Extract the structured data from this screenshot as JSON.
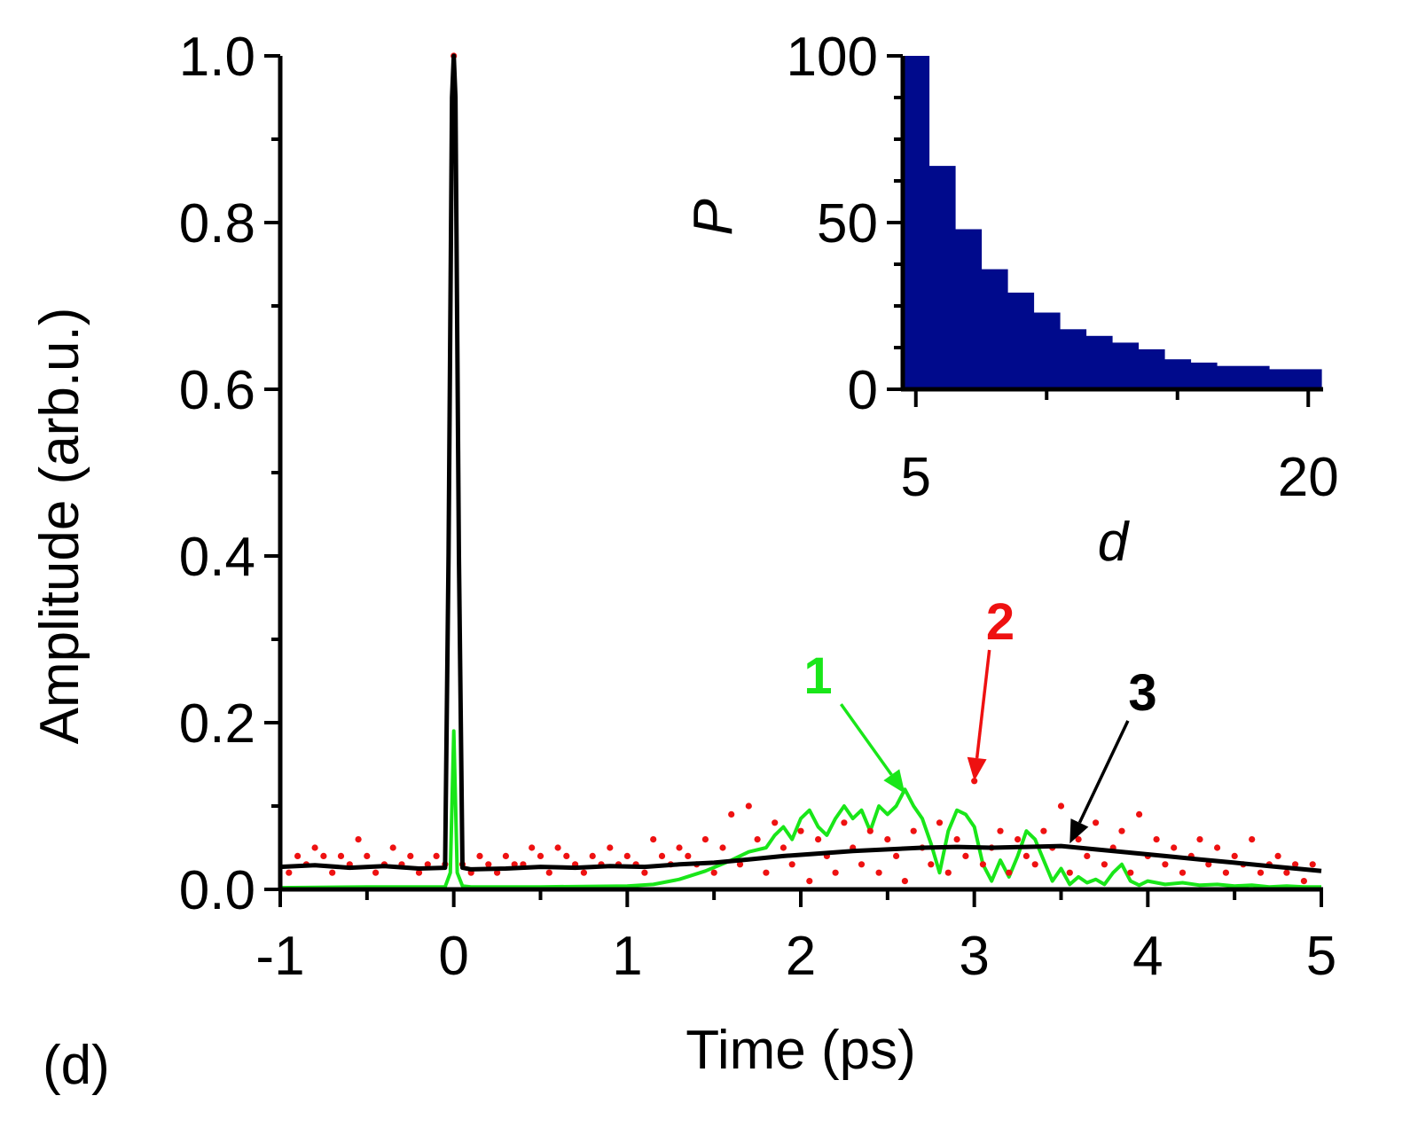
{
  "panel_label": "(d)",
  "colors": {
    "curve1": "#19e619",
    "curve2": "#ee1111",
    "curve3": "#000000",
    "inset_bars": "#000a8c"
  },
  "chart_data": [
    {
      "id": "main",
      "type": "line",
      "xlabel": "Time (ps)",
      "ylabel": "Amplitude (arb.u.)",
      "xlim": [
        -1,
        5
      ],
      "ylim": [
        0,
        1.0
      ],
      "xticks": [
        "-1",
        "0",
        "1",
        "2",
        "3",
        "4",
        "5"
      ],
      "yticks": [
        "0.0",
        "0.2",
        "0.4",
        "0.6",
        "0.8",
        "1.0"
      ],
      "series": [
        {
          "name": "1",
          "style": "solid line",
          "color": "#19e619",
          "x": [
            -1.0,
            -0.5,
            -0.05,
            -0.02,
            0.0,
            0.02,
            0.05,
            0.1,
            0.5,
            1.0,
            1.15,
            1.3,
            1.45,
            1.6,
            1.7,
            1.8,
            1.85,
            1.9,
            1.95,
            2.0,
            2.05,
            2.1,
            2.15,
            2.2,
            2.25,
            2.3,
            2.35,
            2.4,
            2.45,
            2.5,
            2.55,
            2.6,
            2.65,
            2.7,
            2.75,
            2.8,
            2.85,
            2.9,
            2.95,
            3.0,
            3.05,
            3.1,
            3.15,
            3.2,
            3.25,
            3.3,
            3.35,
            3.4,
            3.45,
            3.5,
            3.55,
            3.6,
            3.65,
            3.7,
            3.75,
            3.8,
            3.85,
            3.9,
            3.95,
            4.0,
            4.1,
            4.2,
            4.3,
            4.4,
            4.5,
            4.6,
            4.7,
            4.8,
            4.9,
            5.0
          ],
          "y": [
            0.002,
            0.003,
            0.003,
            0.02,
            0.19,
            0.02,
            0.004,
            0.003,
            0.003,
            0.004,
            0.006,
            0.012,
            0.022,
            0.035,
            0.045,
            0.05,
            0.065,
            0.075,
            0.06,
            0.085,
            0.095,
            0.075,
            0.065,
            0.085,
            0.1,
            0.085,
            0.095,
            0.07,
            0.1,
            0.09,
            0.1,
            0.12,
            0.1,
            0.085,
            0.055,
            0.02,
            0.07,
            0.095,
            0.09,
            0.075,
            0.03,
            0.01,
            0.035,
            0.015,
            0.04,
            0.07,
            0.06,
            0.035,
            0.01,
            0.025,
            0.006,
            0.015,
            0.008,
            0.012,
            0.006,
            0.02,
            0.03,
            0.01,
            0.005,
            0.01,
            0.006,
            0.008,
            0.005,
            0.006,
            0.004,
            0.005,
            0.003,
            0.004,
            0.003,
            0.003
          ]
        },
        {
          "name": "2",
          "style": "dotted markers",
          "color": "#ee1111",
          "x": [
            -0.95,
            -0.9,
            -0.85,
            -0.8,
            -0.75,
            -0.7,
            -0.65,
            -0.6,
            -0.55,
            -0.5,
            -0.45,
            -0.4,
            -0.35,
            -0.3,
            -0.25,
            -0.2,
            -0.15,
            -0.1,
            -0.05,
            0.0,
            0.05,
            0.1,
            0.15,
            0.2,
            0.25,
            0.3,
            0.35,
            0.4,
            0.45,
            0.5,
            0.55,
            0.6,
            0.65,
            0.7,
            0.75,
            0.8,
            0.85,
            0.9,
            0.95,
            1.0,
            1.05,
            1.1,
            1.15,
            1.2,
            1.25,
            1.3,
            1.35,
            1.4,
            1.45,
            1.5,
            1.55,
            1.6,
            1.65,
            1.7,
            1.75,
            1.8,
            1.85,
            1.9,
            1.95,
            2.0,
            2.05,
            2.1,
            2.15,
            2.2,
            2.25,
            2.3,
            2.35,
            2.4,
            2.45,
            2.5,
            2.55,
            2.6,
            2.65,
            2.7,
            2.75,
            2.8,
            2.85,
            2.9,
            2.95,
            3.0,
            3.05,
            3.1,
            3.15,
            3.2,
            3.25,
            3.3,
            3.35,
            3.4,
            3.45,
            3.5,
            3.55,
            3.6,
            3.65,
            3.7,
            3.75,
            3.8,
            3.85,
            3.9,
            3.95,
            4.0,
            4.05,
            4.1,
            4.15,
            4.2,
            4.25,
            4.3,
            4.35,
            4.4,
            4.45,
            4.5,
            4.55,
            4.6,
            4.65,
            4.7,
            4.75,
            4.8,
            4.85,
            4.9,
            4.95
          ],
          "y": [
            0.02,
            0.04,
            0.03,
            0.05,
            0.04,
            0.02,
            0.04,
            0.03,
            0.06,
            0.04,
            0.02,
            0.03,
            0.05,
            0.03,
            0.04,
            0.02,
            0.03,
            0.04,
            0.03,
            1.0,
            0.03,
            0.02,
            0.04,
            0.03,
            0.02,
            0.04,
            0.03,
            0.03,
            0.05,
            0.04,
            0.02,
            0.05,
            0.04,
            0.03,
            0.02,
            0.04,
            0.03,
            0.05,
            0.03,
            0.04,
            0.03,
            0.02,
            0.06,
            0.04,
            0.03,
            0.05,
            0.04,
            0.03,
            0.06,
            0.02,
            0.05,
            0.09,
            0.03,
            0.1,
            0.06,
            0.02,
            0.08,
            0.05,
            0.03,
            0.07,
            0.01,
            0.06,
            0.04,
            0.02,
            0.08,
            0.05,
            0.03,
            0.07,
            0.02,
            0.06,
            0.04,
            0.01,
            0.07,
            0.05,
            0.03,
            0.08,
            0.02,
            0.06,
            0.04,
            0.13,
            0.03,
            0.05,
            0.07,
            0.02,
            0.06,
            0.04,
            0.03,
            0.07,
            0.05,
            0.1,
            0.02,
            0.06,
            0.04,
            0.08,
            0.03,
            0.05,
            0.07,
            0.02,
            0.09,
            0.04,
            0.06,
            0.03,
            0.05,
            0.02,
            0.04,
            0.06,
            0.03,
            0.05,
            0.02,
            0.04,
            0.03,
            0.06,
            0.02,
            0.03,
            0.04,
            0.02,
            0.03,
            0.01,
            0.03
          ]
        },
        {
          "name": "3",
          "style": "thick line",
          "color": "#000000",
          "x": [
            -1.0,
            -0.8,
            -0.6,
            -0.4,
            -0.2,
            -0.05,
            -0.03,
            -0.01,
            0.0,
            0.01,
            0.03,
            0.05,
            0.1,
            0.3,
            0.5,
            0.7,
            0.9,
            1.1,
            1.3,
            1.5,
            1.7,
            1.9,
            2.1,
            2.3,
            2.5,
            2.7,
            2.9,
            3.1,
            3.3,
            3.5,
            3.6,
            3.7,
            3.9,
            4.1,
            4.3,
            4.5,
            4.7,
            4.9,
            5.0
          ],
          "y": [
            0.027,
            0.029,
            0.026,
            0.028,
            0.025,
            0.026,
            0.4,
            0.95,
            1.0,
            0.95,
            0.4,
            0.026,
            0.024,
            0.025,
            0.027,
            0.026,
            0.028,
            0.027,
            0.03,
            0.032,
            0.036,
            0.04,
            0.043,
            0.046,
            0.048,
            0.05,
            0.051,
            0.05,
            0.051,
            0.052,
            0.05,
            0.048,
            0.044,
            0.04,
            0.036,
            0.032,
            0.028,
            0.024,
            0.022
          ]
        }
      ],
      "annotations": [
        {
          "label": "1",
          "text_at": [
            2.1,
            0.235
          ],
          "arrow_to": [
            2.6,
            0.115
          ]
        },
        {
          "label": "2",
          "text_at": [
            3.15,
            0.3
          ],
          "arrow_to": [
            3.0,
            0.13
          ]
        },
        {
          "label": "3",
          "text_at": [
            3.97,
            0.215
          ],
          "arrow_to": [
            3.55,
            0.055
          ]
        }
      ]
    },
    {
      "id": "inset",
      "type": "bar",
      "xlabel": "d",
      "ylabel": "P",
      "xlim": [
        4.5,
        20.5
      ],
      "ylim": [
        0,
        100
      ],
      "xticks": [
        "5",
        "20"
      ],
      "yticks": [
        "0",
        "50",
        "100"
      ],
      "bin_edges": [
        4.5,
        5.5,
        6.5,
        7.5,
        8.5,
        9.5,
        10.5,
        11.5,
        12.5,
        13.5,
        14.5,
        15.5,
        16.5,
        18.5,
        20.5
      ],
      "values": [
        100,
        67,
        48,
        36,
        29,
        23,
        18,
        16,
        14,
        12,
        9,
        8,
        7,
        6
      ]
    }
  ]
}
